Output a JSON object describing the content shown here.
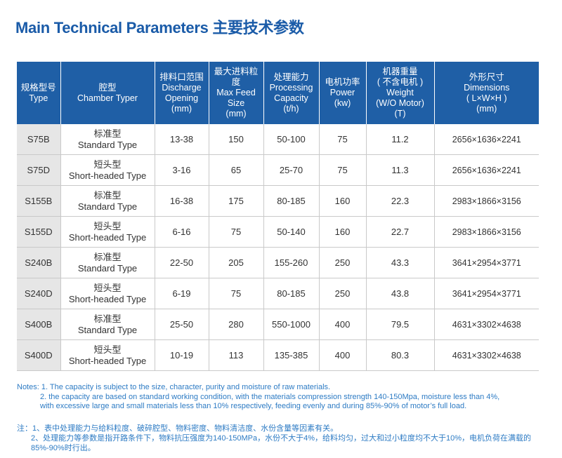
{
  "title": "Main Technical Parameters 主要技术参数",
  "table": {
    "headers": [
      [
        "规格型号",
        "Type"
      ],
      [
        "腔型",
        "Chamber Typer"
      ],
      [
        "排料口范围",
        "Discharge",
        "Opening",
        "(mm)"
      ],
      [
        "最大进料粒度",
        "Max Feed",
        "Size",
        "(mm)"
      ],
      [
        "处理能力",
        "Processing",
        "Capacity",
        "(t/h)"
      ],
      [
        "电机功率",
        "Power",
        "(kw)"
      ],
      [
        "机器重量",
        "( 不含电机 )",
        "Weight",
        "(W/O Motor)",
        "(T)"
      ],
      [
        "外形尺寸",
        "Dimensions",
        "( L×W×H )",
        "(mm)"
      ]
    ],
    "rows": [
      {
        "type": "S75B",
        "chamber_cn": "标准型",
        "chamber_en": "Standard Type",
        "opening": "13-38",
        "feed": "150",
        "capacity": "50-100",
        "power": "75",
        "weight": "11.2",
        "dims": "2656×1636×2241"
      },
      {
        "type": "S75D",
        "chamber_cn": "短头型",
        "chamber_en": "Short-headed Type",
        "opening": "3-16",
        "feed": "65",
        "capacity": "25-70",
        "power": "75",
        "weight": "11.3",
        "dims": "2656×1636×2241"
      },
      {
        "type": "S155B",
        "chamber_cn": "标准型",
        "chamber_en": "Standard Type",
        "opening": "16-38",
        "feed": "175",
        "capacity": "80-185",
        "power": "160",
        "weight": "22.3",
        "dims": "2983×1866×3156"
      },
      {
        "type": "S155D",
        "chamber_cn": "短头型",
        "chamber_en": "Short-headed Type",
        "opening": "6-16",
        "feed": "75",
        "capacity": "50-140",
        "power": "160",
        "weight": "22.7",
        "dims": "2983×1866×3156"
      },
      {
        "type": "S240B",
        "chamber_cn": "标准型",
        "chamber_en": "Standard Type",
        "opening": "22-50",
        "feed": "205",
        "capacity": "155-260",
        "power": "250",
        "weight": "43.3",
        "dims": "3641×2954×3771"
      },
      {
        "type": "S240D",
        "chamber_cn": "短头型",
        "chamber_en": "Short-headed Type",
        "opening": "6-19",
        "feed": "75",
        "capacity": "80-185",
        "power": "250",
        "weight": "43.8",
        "dims": "3641×2954×3771"
      },
      {
        "type": "S400B",
        "chamber_cn": "标准型",
        "chamber_en": "Standard Type",
        "opening": "25-50",
        "feed": "280",
        "capacity": "550-1000",
        "power": "400",
        "weight": "79.5",
        "dims": "4631×3302×4638"
      },
      {
        "type": "S400D",
        "chamber_cn": "短头型",
        "chamber_en": "Short-headed Type",
        "opening": "10-19",
        "feed": "113",
        "capacity": "135-385",
        "power": "400",
        "weight": "80.3",
        "dims": "4631×3302×4638"
      }
    ]
  },
  "notes_en": [
    "Notes: 1. The capacity is subject to the size, character, purity and moisture of raw materials.",
    "2. the capacity are based on standard working condition, with the materials compression strength 140-150Mpa, moisture less than 4%,",
    "with excessive large and small materials less than 10% respectively, feeding evenly and during 85%-90% of motor’s full load."
  ],
  "notes_cn": [
    "注：1、表中处理能力与给料粒度、破碎腔型、物料密度、物料清洁度、水份含量等因素有关。",
    "2、处理能力等参数是指开路条件下，物料抗压强度为140-150MPa，水份不大于4%，给料均匀，过大和过小粒度均不大于10%，电机负荷在满载的",
    "85%-90%时行出。"
  ]
}
